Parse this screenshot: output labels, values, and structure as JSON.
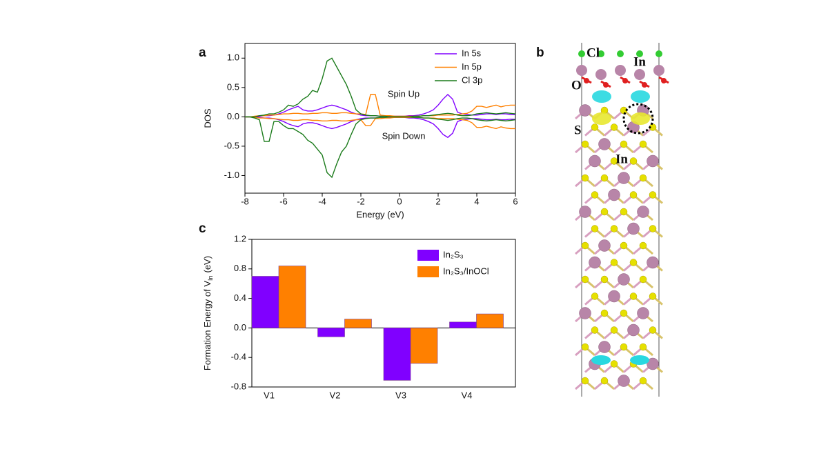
{
  "chart_data": [
    {
      "type": "line",
      "panel_label": "a",
      "xlabel": "Energy (eV)",
      "ylabel": "DOS",
      "xlim": [
        -8,
        6
      ],
      "ylim": [
        -1.3,
        1.25
      ],
      "xticks": [
        -8,
        -6,
        -4,
        -2,
        0,
        2,
        4,
        6
      ],
      "yticks": [
        {
          "value": -1,
          "label": "-1.0"
        },
        -0.5,
        {
          "value": 0,
          "label": "0.0"
        },
        0.5,
        {
          "value": 1,
          "label": "1.0"
        }
      ],
      "annotations": [
        "Spin Up",
        "Spin Down"
      ],
      "x": [
        -8,
        -7.75,
        -7.5,
        -7.25,
        -7,
        -6.75,
        -6.5,
        -6.25,
        -6,
        -5.75,
        -5.5,
        -5.25,
        -5,
        -4.75,
        -4.5,
        -4.25,
        -4,
        -3.75,
        -3.5,
        -3.25,
        -3,
        -2.75,
        -2.5,
        -2.25,
        -2,
        -1.75,
        -1.5,
        -1.25,
        -1,
        -0.75,
        -0.5,
        -0.25,
        0,
        0.25,
        0.5,
        0.75,
        1,
        1.25,
        1.5,
        1.75,
        2,
        2.25,
        2.5,
        2.75,
        3,
        3.25,
        3.5,
        3.75,
        4,
        4.25,
        4.5,
        4.75,
        5,
        5.25,
        5.5,
        5.75,
        6
      ],
      "series": [
        {
          "name": "In 5s",
          "color": "#8000ff",
          "values": [
            0,
            0,
            0,
            0.01,
            0.02,
            0.02,
            0.03,
            0.05,
            0.08,
            0.12,
            0.15,
            0.18,
            0.12,
            0.1,
            0.1,
            0.12,
            0.15,
            0.18,
            0.2,
            0.18,
            0.15,
            0.12,
            0.08,
            0.05,
            0.03,
            0.02,
            0.02,
            0.02,
            0.01,
            0.01,
            0.01,
            0.01,
            0.01,
            0.01,
            0.02,
            0.02,
            0.03,
            0.05,
            0.08,
            0.12,
            0.2,
            0.3,
            0.38,
            0.3,
            0.08,
            0.05,
            0.04,
            0.03,
            0.03,
            0.04,
            0.05,
            0.05,
            0.04,
            0.05,
            0.05,
            0.04,
            0.04
          ],
          "values_down": [
            0,
            0,
            0,
            -0.01,
            -0.02,
            -0.02,
            -0.03,
            -0.05,
            -0.08,
            -0.12,
            -0.15,
            -0.17,
            -0.12,
            -0.1,
            -0.1,
            -0.12,
            -0.15,
            -0.18,
            -0.2,
            -0.18,
            -0.15,
            -0.12,
            -0.08,
            -0.05,
            -0.03,
            -0.02,
            -0.02,
            -0.02,
            -0.01,
            -0.01,
            -0.01,
            -0.01,
            -0.01,
            -0.01,
            -0.02,
            -0.02,
            -0.03,
            -0.05,
            -0.08,
            -0.12,
            -0.2,
            -0.3,
            -0.35,
            -0.28,
            -0.08,
            -0.05,
            -0.04,
            -0.03,
            -0.03,
            -0.04,
            -0.05,
            -0.05,
            -0.04,
            -0.05,
            -0.05,
            -0.04,
            -0.04
          ]
        },
        {
          "name": "In 5p",
          "color": "#ff8000",
          "values": [
            0,
            0,
            0.01,
            0.02,
            0.02,
            0.03,
            0.03,
            0.04,
            0.05,
            0.05,
            0.06,
            0.06,
            0.05,
            0.05,
            0.06,
            0.06,
            0.07,
            0.07,
            0.06,
            0.06,
            0.07,
            0.07,
            0.06,
            0.05,
            0.05,
            0.04,
            0.38,
            0.38,
            0.03,
            0.02,
            0.02,
            0.01,
            0.01,
            0.01,
            0.01,
            0.01,
            0.01,
            0.02,
            0.02,
            0.02,
            0.03,
            0.03,
            0.03,
            0.03,
            0.04,
            0.05,
            0.06,
            0.1,
            0.18,
            0.18,
            0.16,
            0.18,
            0.2,
            0.17,
            0.19,
            0.2,
            0.2
          ],
          "values_down": [
            0,
            0,
            -0.01,
            -0.02,
            -0.02,
            -0.03,
            -0.03,
            -0.04,
            -0.05,
            -0.05,
            -0.06,
            -0.06,
            -0.05,
            -0.05,
            -0.06,
            -0.06,
            -0.07,
            -0.07,
            -0.06,
            -0.06,
            -0.07,
            -0.07,
            -0.06,
            -0.05,
            -0.05,
            -0.15,
            -0.15,
            -0.03,
            -0.03,
            -0.02,
            -0.02,
            -0.01,
            -0.01,
            -0.01,
            -0.01,
            -0.01,
            -0.01,
            -0.02,
            -0.02,
            -0.02,
            -0.03,
            -0.03,
            -0.03,
            -0.03,
            -0.04,
            -0.05,
            -0.06,
            -0.1,
            -0.18,
            -0.18,
            -0.16,
            -0.18,
            -0.2,
            -0.17,
            -0.19,
            -0.2,
            -0.2
          ]
        },
        {
          "name": "Cl 3p",
          "color": "#1a7a1a",
          "values": [
            0,
            0,
            0,
            0.02,
            0.03,
            0.05,
            0.05,
            0.08,
            0.12,
            0.2,
            0.18,
            0.22,
            0.3,
            0.35,
            0.45,
            0.42,
            0.65,
            0.95,
            1.0,
            0.85,
            0.7,
            0.55,
            0.35,
            0.12,
            0.05,
            0.03,
            0.02,
            0.02,
            0.01,
            0.01,
            0,
            0,
            0,
            0,
            0,
            0.01,
            0.01,
            0.02,
            0.02,
            0.03,
            0.04,
            0.05,
            0.06,
            0.05,
            0.03,
            0.02,
            0.02,
            0.03,
            0.05,
            0.06,
            0.07,
            0.06,
            0.05,
            0.06,
            0.07,
            0.06,
            0.05
          ],
          "values_down": [
            0,
            0,
            -0.02,
            -0.05,
            -0.42,
            -0.42,
            -0.08,
            -0.08,
            -0.15,
            -0.2,
            -0.2,
            -0.25,
            -0.3,
            -0.4,
            -0.45,
            -0.55,
            -0.65,
            -0.95,
            -1.03,
            -0.8,
            -0.6,
            -0.5,
            -0.3,
            -0.12,
            -0.05,
            -0.03,
            -0.02,
            -0.02,
            -0.01,
            -0.01,
            0,
            0,
            0,
            0,
            0,
            -0.01,
            -0.01,
            -0.02,
            -0.02,
            -0.03,
            -0.04,
            -0.05,
            -0.06,
            -0.05,
            -0.03,
            -0.02,
            -0.02,
            -0.03,
            -0.05,
            -0.06,
            -0.07,
            -0.06,
            -0.05,
            -0.06,
            -0.07,
            -0.06,
            -0.05
          ]
        }
      ]
    },
    {
      "type": "bar",
      "panel_label": "c",
      "ylabel_parts": [
        "Formation Energy of V",
        "In",
        "(eV)"
      ],
      "categories": [
        "V1",
        "V2",
        "V3",
        "V4"
      ],
      "ylim": [
        -0.8,
        1.2
      ],
      "yticks": [
        -0.8,
        -0.4,
        {
          "value": 0,
          "label": "0.0"
        },
        0.4,
        0.8,
        1.2
      ],
      "series": [
        {
          "name": "In₂S₃",
          "color": "#8000ff",
          "values": [
            0.7,
            -0.12,
            -0.71,
            0.08
          ]
        },
        {
          "name": "In₂S₃/InOCl",
          "color": "#ff8000",
          "values": [
            0.84,
            0.12,
            -0.48,
            0.19
          ]
        }
      ]
    }
  ],
  "panel_b": {
    "label": "b",
    "atom_labels": [
      "Cl",
      "In",
      "O",
      "S",
      "In"
    ]
  }
}
